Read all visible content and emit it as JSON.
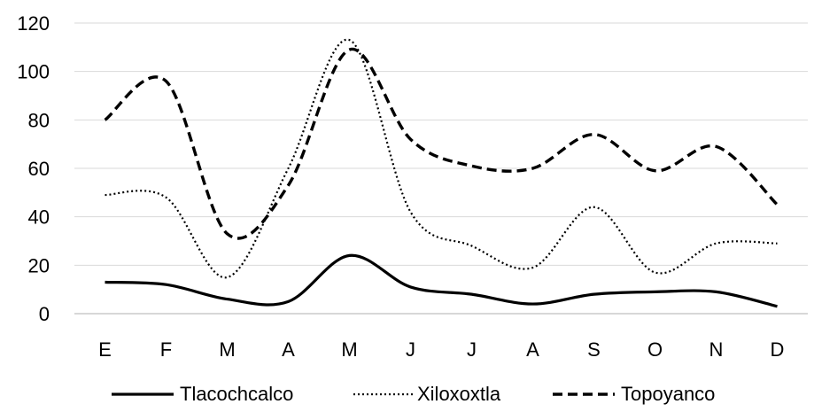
{
  "chart_data": {
    "type": "line",
    "title": "",
    "xlabel": "",
    "ylabel": "",
    "categories": [
      "E",
      "F",
      "M",
      "A",
      "M",
      "J",
      "J",
      "A",
      "S",
      "O",
      "N",
      "D"
    ],
    "y_ticks": [
      "0",
      "20",
      "40",
      "60",
      "80",
      "100",
      "120"
    ],
    "ylim": [
      0,
      120
    ],
    "grid": true,
    "legend_position": "bottom",
    "smooth": true,
    "series": [
      {
        "name": "Tlacochcalco",
        "style": "solid",
        "color": "#000000",
        "values": [
          13,
          12,
          6,
          5,
          24,
          11,
          8,
          4,
          8,
          9,
          9,
          3
        ]
      },
      {
        "name": "Xiloxoxtla",
        "style": "dotted",
        "color": "#000000",
        "values": [
          49,
          48,
          15,
          60,
          113,
          42,
          28,
          19,
          44,
          17,
          29,
          29
        ]
      },
      {
        "name": "Topoyanco",
        "style": "dashed",
        "color": "#000000",
        "values": [
          80,
          96,
          33,
          53,
          109,
          72,
          61,
          60,
          74,
          59,
          69,
          45
        ]
      }
    ]
  }
}
